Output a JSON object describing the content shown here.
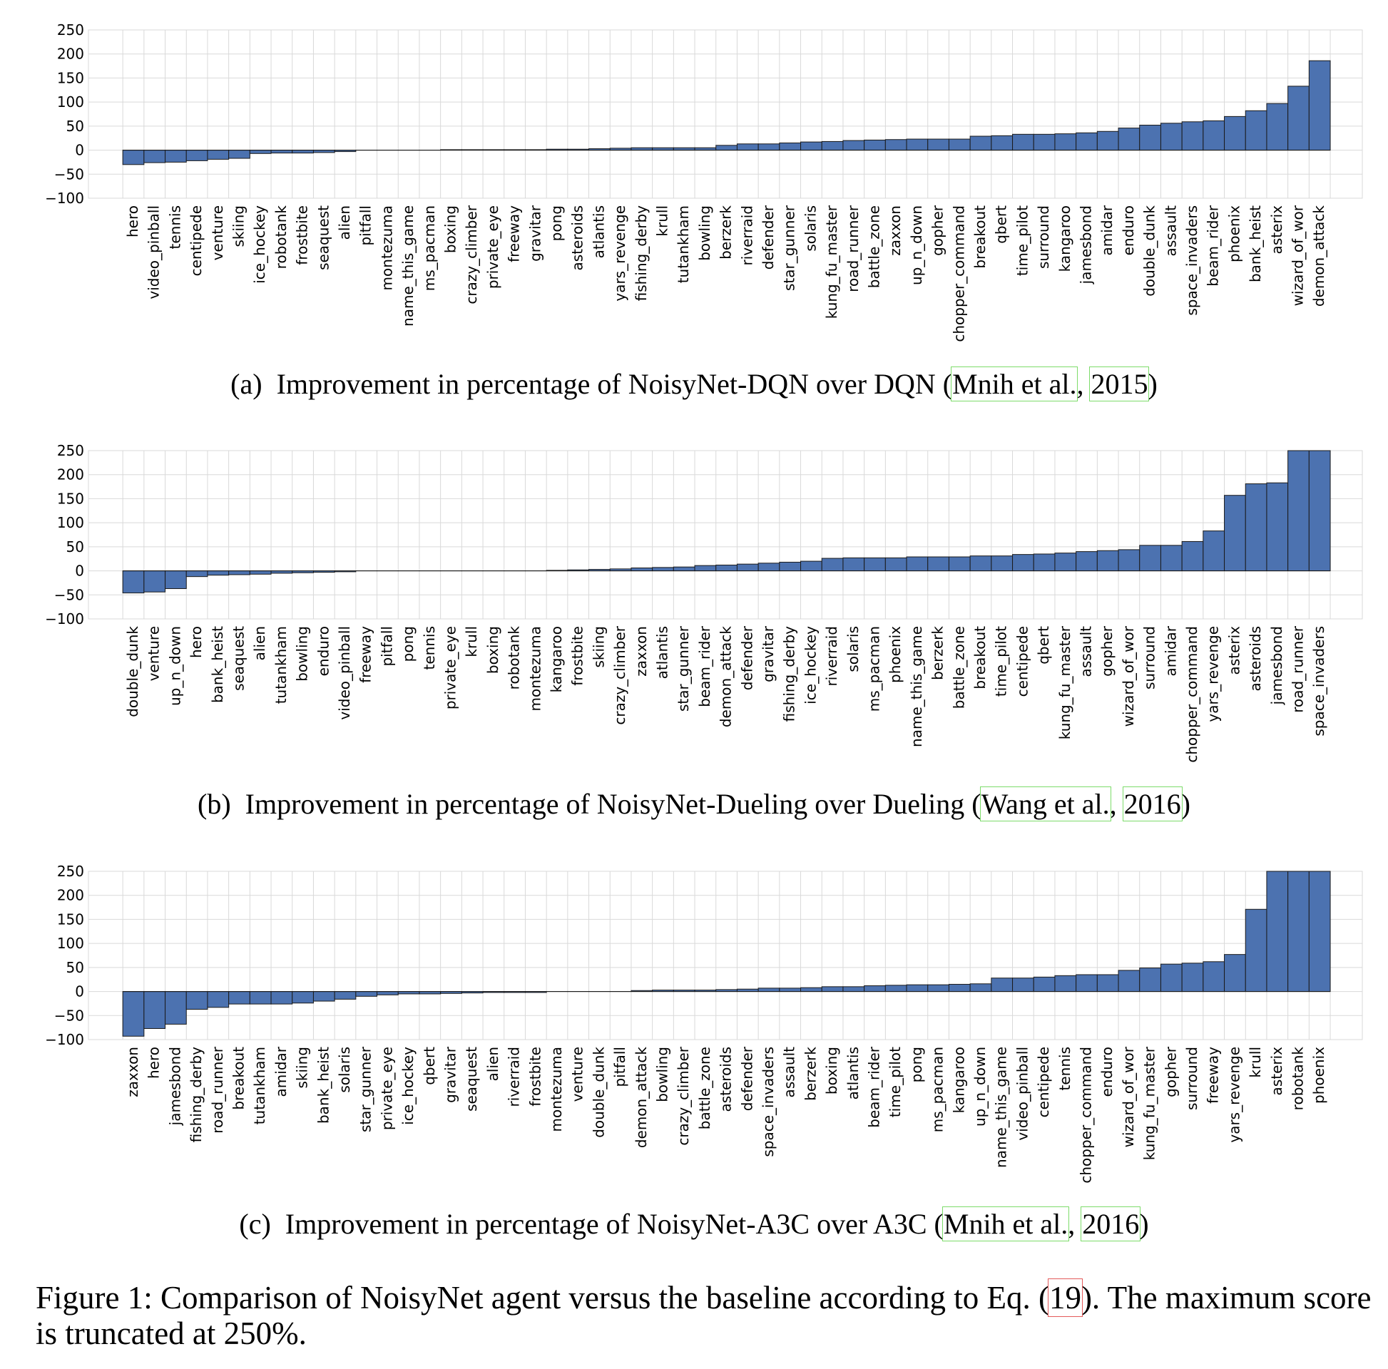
{
  "colors": {
    "bar": "#4c72b0",
    "bar_edge": "#1a1a1a",
    "grid": "#d9d9d9"
  },
  "chart_data": [
    {
      "type": "bar",
      "panel": "a",
      "ylim": [
        -100,
        250
      ],
      "yticks": [
        -100,
        -50,
        0,
        50,
        100,
        150,
        200,
        250
      ],
      "grid": true,
      "categories": [
        "hero",
        "video_pinball",
        "tennis",
        "centipede",
        "venture",
        "skiing",
        "ice_hockey",
        "robotank",
        "frostbite",
        "seaquest",
        "alien",
        "pitfall",
        "montezuma",
        "name_this_game",
        "ms_pacman",
        "boxing",
        "crazy_climber",
        "private_eye",
        "freeway",
        "gravitar",
        "pong",
        "asteroids",
        "atlantis",
        "yars_revenge",
        "fishing_derby",
        "krull",
        "tutankham",
        "bowling",
        "berzerk",
        "riverraid",
        "defender",
        "star_gunner",
        "solaris",
        "kung_fu_master",
        "road_runner",
        "battle_zone",
        "zaxxon",
        "up_n_down",
        "gopher",
        "chopper_command",
        "breakout",
        "qbert",
        "time_pilot",
        "surround",
        "kangaroo",
        "jamesbond",
        "amidar",
        "enduro",
        "double_dunk",
        "assault",
        "space_invaders",
        "beam_rider",
        "phoenix",
        "bank_heist",
        "asterix",
        "wizard_of_wor",
        "demon_attack"
      ],
      "values": [
        -30,
        -26,
        -25,
        -22,
        -19,
        -17,
        -7,
        -6,
        -6,
        -5,
        -3,
        0,
        0,
        0,
        0,
        1,
        1,
        1,
        1,
        1,
        2,
        2,
        3,
        4,
        5,
        5,
        5,
        5,
        10,
        13,
        13,
        15,
        17,
        18,
        20,
        21,
        22,
        23,
        23,
        23,
        29,
        30,
        33,
        33,
        34,
        36,
        39,
        46,
        52,
        56,
        59,
        61,
        70,
        82,
        97,
        133,
        186
      ]
    },
    {
      "type": "bar",
      "panel": "b",
      "ylim": [
        -100,
        250
      ],
      "yticks": [
        -100,
        -50,
        0,
        50,
        100,
        150,
        200,
        250
      ],
      "grid": true,
      "categories": [
        "double_dunk",
        "venture",
        "up_n_down",
        "hero",
        "bank_heist",
        "seaquest",
        "alien",
        "tutankham",
        "bowling",
        "enduro",
        "video_pinball",
        "freeway",
        "pitfall",
        "pong",
        "tennis",
        "private_eye",
        "krull",
        "boxing",
        "robotank",
        "montezuma",
        "kangaroo",
        "frostbite",
        "skiing",
        "crazy_climber",
        "zaxxon",
        "atlantis",
        "star_gunner",
        "beam_rider",
        "demon_attack",
        "defender",
        "gravitar",
        "fishing_derby",
        "ice_hockey",
        "riverraid",
        "solaris",
        "ms_pacman",
        "phoenix",
        "name_this_game",
        "berzerk",
        "battle_zone",
        "breakout",
        "time_pilot",
        "centipede",
        "qbert",
        "kung_fu_master",
        "assault",
        "gopher",
        "wizard_of_wor",
        "surround",
        "amidar",
        "chopper_command",
        "yars_revenge",
        "asterix",
        "asteroids",
        "jamesbond",
        "road_runner",
        "space_invaders"
      ],
      "values": [
        -46,
        -44,
        -37,
        -12,
        -9,
        -8,
        -7,
        -5,
        -4,
        -3,
        -2,
        0,
        0,
        0,
        0,
        0,
        0,
        0,
        0,
        0,
        1,
        2,
        3,
        4,
        6,
        7,
        8,
        11,
        12,
        14,
        16,
        18,
        20,
        26,
        27,
        27,
        27,
        29,
        29,
        29,
        31,
        31,
        34,
        35,
        37,
        40,
        42,
        44,
        53,
        53,
        61,
        83,
        157,
        181,
        183,
        250,
        250
      ]
    },
    {
      "type": "bar",
      "panel": "c",
      "ylim": [
        -100,
        250
      ],
      "yticks": [
        -100,
        -50,
        0,
        50,
        100,
        150,
        200,
        250
      ],
      "grid": true,
      "categories": [
        "zaxxon",
        "hero",
        "jamesbond",
        "fishing_derby",
        "road_runner",
        "breakout",
        "tutankham",
        "amidar",
        "skiing",
        "bank_heist",
        "solaris",
        "star_gunner",
        "private_eye",
        "ice_hockey",
        "qbert",
        "gravitar",
        "seaquest",
        "alien",
        "riverraid",
        "frostbite",
        "montezuma",
        "venture",
        "double_dunk",
        "pitfall",
        "demon_attack",
        "bowling",
        "crazy_climber",
        "battle_zone",
        "asteroids",
        "defender",
        "space_invaders",
        "assault",
        "berzerk",
        "boxing",
        "atlantis",
        "beam_rider",
        "time_pilot",
        "pong",
        "ms_pacman",
        "kangaroo",
        "up_n_down",
        "name_this_game",
        "video_pinball",
        "centipede",
        "tennis",
        "chopper_command",
        "enduro",
        "wizard_of_wor",
        "kung_fu_master",
        "gopher",
        "surround",
        "freeway",
        "yars_revenge",
        "krull",
        "asterix",
        "robotank",
        "phoenix"
      ],
      "values": [
        -93,
        -77,
        -68,
        -37,
        -33,
        -26,
        -26,
        -26,
        -24,
        -20,
        -16,
        -10,
        -7,
        -5,
        -5,
        -4,
        -3,
        -2,
        -2,
        -2,
        0,
        0,
        0,
        0,
        2,
        3,
        3,
        3,
        4,
        5,
        7,
        7,
        8,
        10,
        10,
        12,
        13,
        14,
        14,
        15,
        16,
        28,
        28,
        30,
        33,
        35,
        35,
        44,
        49,
        57,
        59,
        62,
        77,
        171,
        250,
        250,
        250
      ]
    }
  ],
  "captions": [
    {
      "label": "(a)",
      "text": "Improvement in percentage of NoisyNet-DQN over DQN (",
      "cite_name": "Mnih et al.",
      "comma": ", ",
      "cite_year": "2015",
      "close": ")"
    },
    {
      "label": "(b)",
      "text": "Improvement in percentage of NoisyNet-Dueling over Dueling (",
      "cite_name": "Wang et al.",
      "comma": ", ",
      "cite_year": "2016",
      "close": ")"
    },
    {
      "label": "(c)",
      "text": "Improvement in percentage of NoisyNet-A3C over A3C (",
      "cite_name": "Mnih et al.",
      "comma": ", ",
      "cite_year": "2016",
      "close": ")"
    }
  ],
  "figure_caption": {
    "prefix": "Figure 1: Comparison of NoisyNet agent versus the baseline according to Eq. (",
    "eq_ref": "19",
    "suffix": "). The maximum score is truncated at 250%."
  }
}
